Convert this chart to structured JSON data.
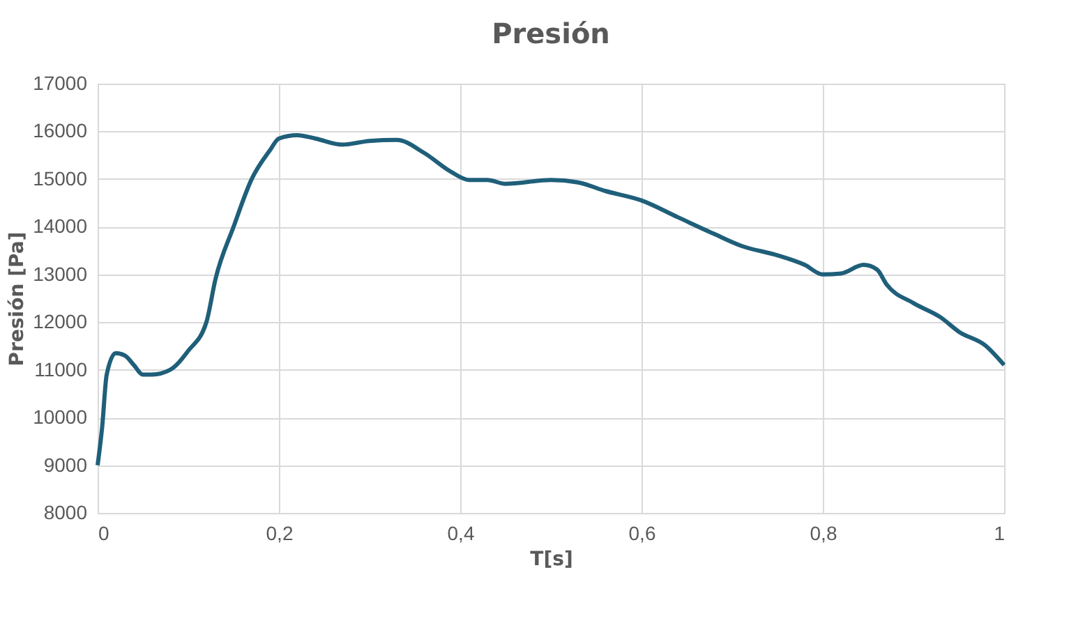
{
  "chart_data": {
    "type": "line",
    "title": "Presión",
    "xlabel": "T[s]",
    "ylabel": "Presión [Pa]",
    "x": [
      0,
      0.005,
      0.01,
      0.02,
      0.03,
      0.04,
      0.05,
      0.06,
      0.08,
      0.1,
      0.12,
      0.13,
      0.15,
      0.17,
      0.19,
      0.2,
      0.22,
      0.24,
      0.27,
      0.3,
      0.33,
      0.36,
      0.39,
      0.41,
      0.43,
      0.45,
      0.5,
      0.53,
      0.56,
      0.6,
      0.64,
      0.68,
      0.71,
      0.75,
      0.78,
      0.8,
      0.82,
      0.845,
      0.86,
      0.87,
      0.9,
      0.93,
      0.95,
      0.98,
      1.0
    ],
    "series": [
      {
        "color": "#1f5f7a",
        "values": [
          9000,
          9800,
          10900,
          11350,
          11300,
          11100,
          10900,
          10900,
          11000,
          11400,
          12000,
          12900,
          14000,
          15000,
          15600,
          15850,
          15920,
          15850,
          15720,
          15800,
          15820,
          15550,
          15150,
          14980,
          14980,
          14900,
          14980,
          14930,
          14750,
          14550,
          14200,
          13850,
          13600,
          13400,
          13200,
          13000,
          13020,
          13200,
          13100,
          12800,
          12400,
          12100,
          11800,
          11500,
          11100
        ]
      }
    ],
    "xlim": [
      0,
      1
    ],
    "xticks": [
      {
        "value": 0,
        "label": "0"
      },
      {
        "value": 0.2,
        "label": "0,2"
      },
      {
        "value": 0.4,
        "label": "0,4"
      },
      {
        "value": 0.6,
        "label": "0,6"
      },
      {
        "value": 0.8,
        "label": "0,8"
      },
      {
        "value": 1,
        "label": "1"
      }
    ],
    "ylim": [
      8000,
      17000
    ],
    "yticks": [
      8000,
      9000,
      10000,
      11000,
      12000,
      13000,
      14000,
      15000,
      16000,
      17000
    ],
    "grid": true,
    "marker": "none",
    "line_style": "solid"
  }
}
